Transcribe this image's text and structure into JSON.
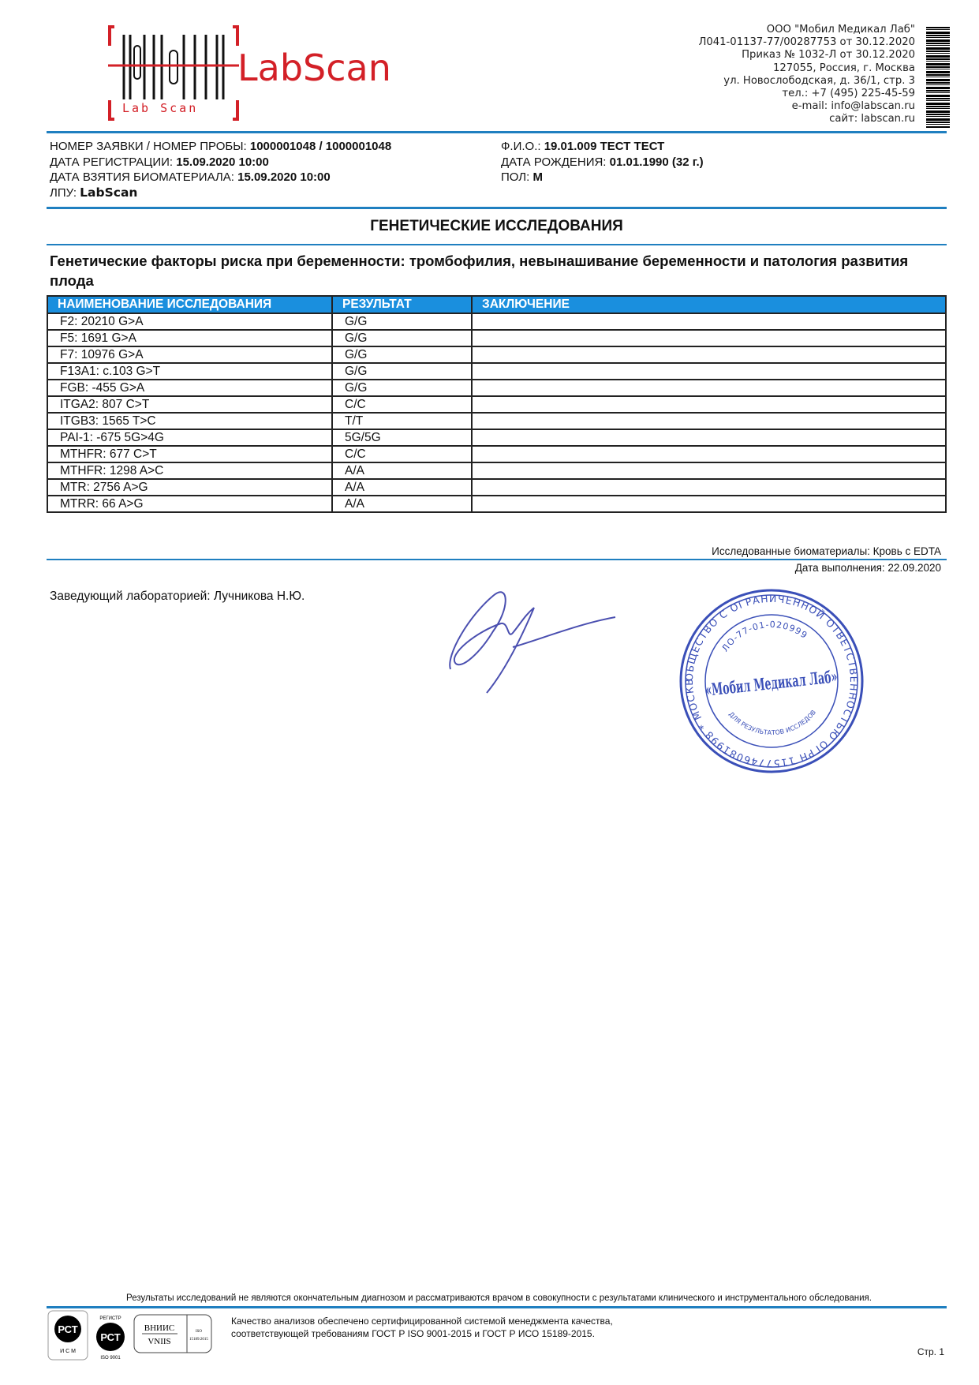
{
  "logo": {
    "text": "LabScan",
    "subtext": "Lab Scan",
    "color": "#d32027"
  },
  "org": {
    "lines": [
      "ООО \"Мобил Медикал Лаб\"",
      "Л041-01137-77/00287753 от 30.12.2020",
      "Приказ № 1032-Л от 30.12.2020",
      "127055, Россия, г. Москва",
      "ул. Новослободская, д. 36/1, стр. 3",
      "тел.: +7 (495) 225-45-59",
      "e-mail: info@labscan.ru",
      "сайт: labscan.ru"
    ]
  },
  "info": {
    "order_label": "НОМЕР ЗАЯВКИ / НОМЕР ПРОБЫ:",
    "order_value": "1000001048 / 1000001048",
    "reg_label": "ДАТА РЕГИСТРАЦИИ:",
    "reg_value": "15.09.2020 10:00",
    "sample_label": "ДАТА ВЗЯТИЯ БИОМАТЕРИАЛА:",
    "sample_value": "15.09.2020 10:00",
    "lpu_label": "ЛПУ:",
    "lpu_value": "LabScan",
    "name_label": "Ф.И.О.:",
    "name_value": "19.01.009 ТЕСТ ТЕСТ",
    "dob_label": "ДАТА РОЖДЕНИЯ:",
    "dob_value": "01.01.1990 (32 г.)",
    "sex_label": "ПОЛ:",
    "sex_value": "М"
  },
  "section_title": "ГЕНЕТИЧЕСКИЕ ИССЛЕДОВАНИЯ",
  "panel_title": "Генетические факторы риска при беременности: тромбофилия, невынашивание беременности и патология развития плода",
  "table": {
    "headers": [
      "НАИМЕНОВАНИЕ ИССЛЕДОВАНИЯ",
      "РЕЗУЛЬТАТ",
      "ЗАКЛЮЧЕНИЕ"
    ],
    "rows": [
      [
        "F2: 20210 G>A",
        "G/G",
        ""
      ],
      [
        "F5: 1691 G>A",
        "G/G",
        ""
      ],
      [
        "F7: 10976 G>A",
        "G/G",
        ""
      ],
      [
        "F13A1: c.103 G>T",
        "G/G",
        ""
      ],
      [
        "FGB: -455 G>A",
        "G/G",
        ""
      ],
      [
        "ITGA2: 807 C>T",
        "C/C",
        ""
      ],
      [
        "ITGB3: 1565 T>C",
        "T/T",
        ""
      ],
      [
        "PAI-1: -675 5G>4G",
        "5G/5G",
        ""
      ],
      [
        "MTHFR: 677 C>T",
        "C/C",
        ""
      ],
      [
        "MTHFR: 1298 A>C",
        "A/A",
        ""
      ],
      [
        "MTR: 2756 A>G",
        "A/A",
        ""
      ],
      [
        "MTRR: 66 A>G",
        "A/A",
        ""
      ]
    ]
  },
  "biomaterial": "Исследованные биоматериалы: Кровь с EDTA",
  "completion_date": "Дата выполнения: 22.09.2020",
  "head_of_lab": "Заведующий лабораторией: Лучникова Н.Ю.",
  "stamp": {
    "outer": "ОБЩЕСТВО С ОГРАНИЧЕННОЙ ОТВЕТСТВЕННОСТЬЮ ОГРН 1157746081998 * МОСКВА *",
    "license": "ЛО-77-01-020999",
    "center": "«Мобил Медикал Лаб»",
    "inner": "ДЛЯ РЕЗУЛЬТАТОВ ИССЛЕДОВАНИЙ",
    "color": "#3a4fb8"
  },
  "footer": {
    "disclaimer": "Результаты исследований не являются окончательным диагнозом и рассматриваются врачом в совокупности с результатами клинического и инструментального обследования.",
    "quality_line1": "Качество анализов обеспечено сертифицированной системой менеджмента качества,",
    "quality_line2": "соответствующей требованиям ГОСТ Р ISO 9001-2015 и ГОСТ Р ИСО 15189-2015.",
    "page": "Стр. 1",
    "badges": [
      "РСТ",
      "РСТ",
      "ВНИИС / VNIIS"
    ]
  }
}
